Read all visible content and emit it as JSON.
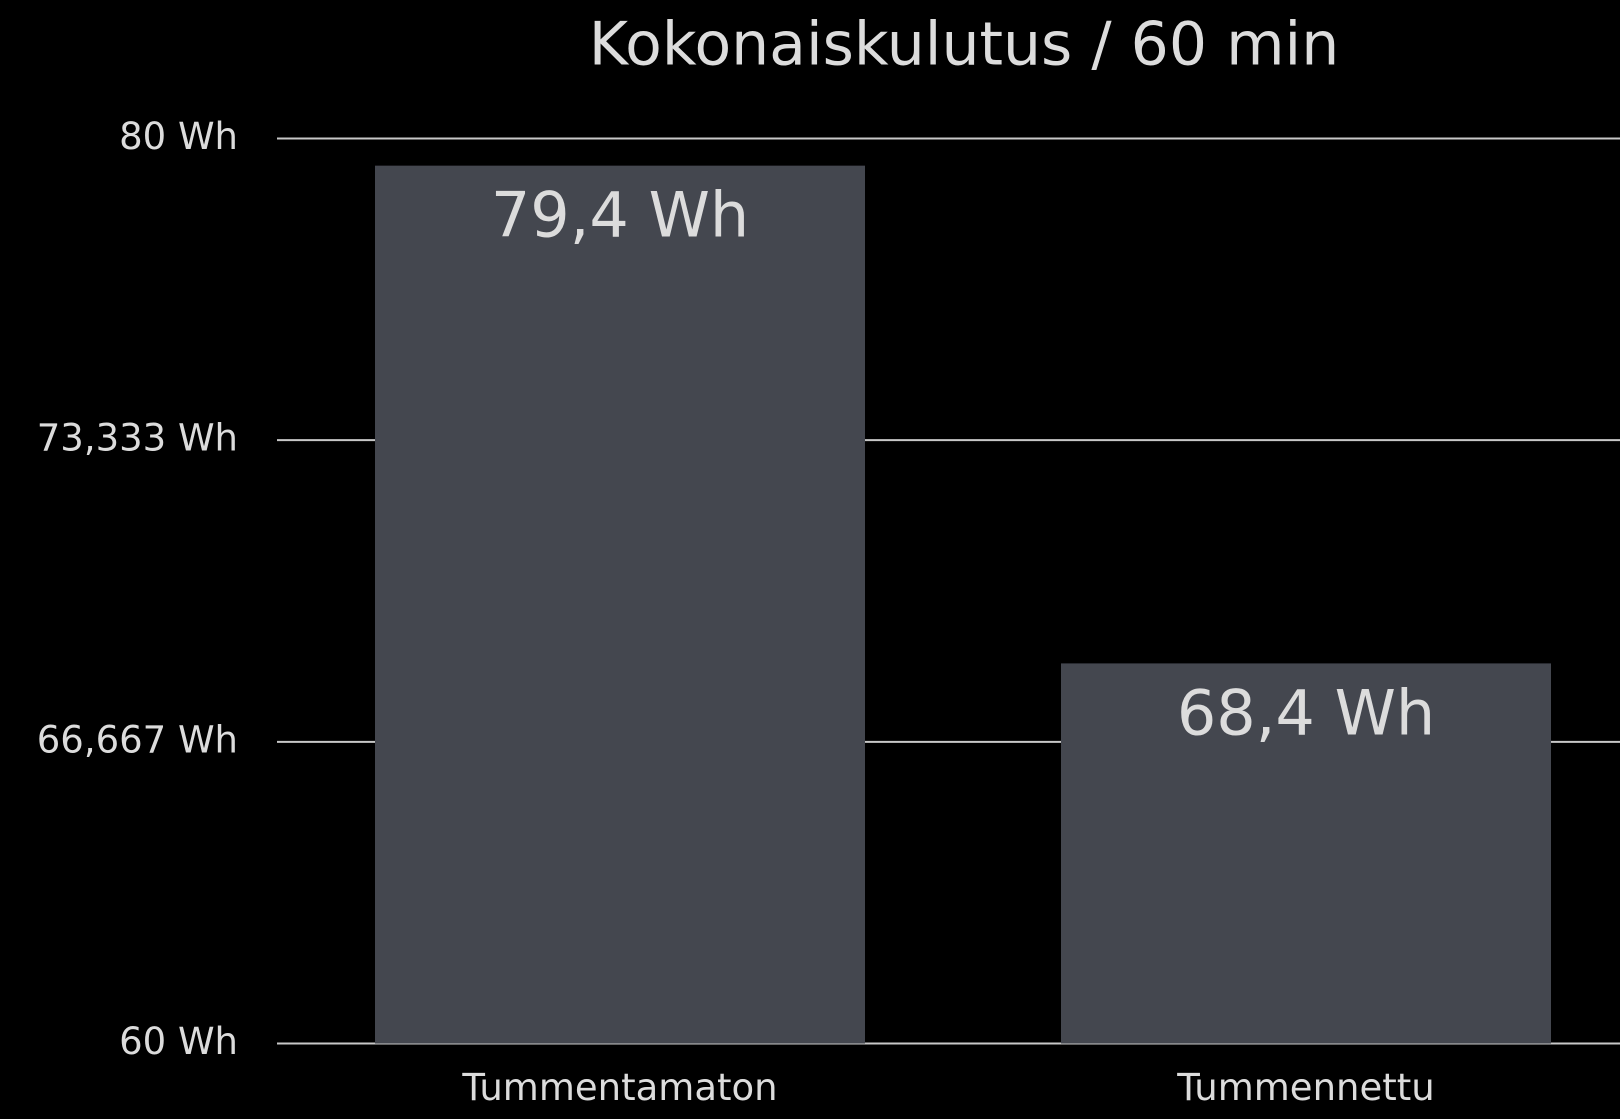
{
  "chart_data": {
    "type": "bar",
    "title": "Kokonaiskulutus / 60 min",
    "categories": [
      "Tummentamaton",
      "Tummennettu"
    ],
    "values": [
      79.4,
      68.4
    ],
    "value_labels": [
      "79,4 Wh",
      "68,4 Wh"
    ],
    "color": "#44474f",
    "ylim": [
      60,
      80
    ],
    "yticks": [
      {
        "value": 60,
        "label": "60 Wh"
      },
      {
        "value": 66.667,
        "label": "66,667 Wh"
      },
      {
        "value": 73.333,
        "label": "73,333 Wh"
      },
      {
        "value": 80,
        "label": "80 Wh"
      }
    ],
    "grid": true
  }
}
